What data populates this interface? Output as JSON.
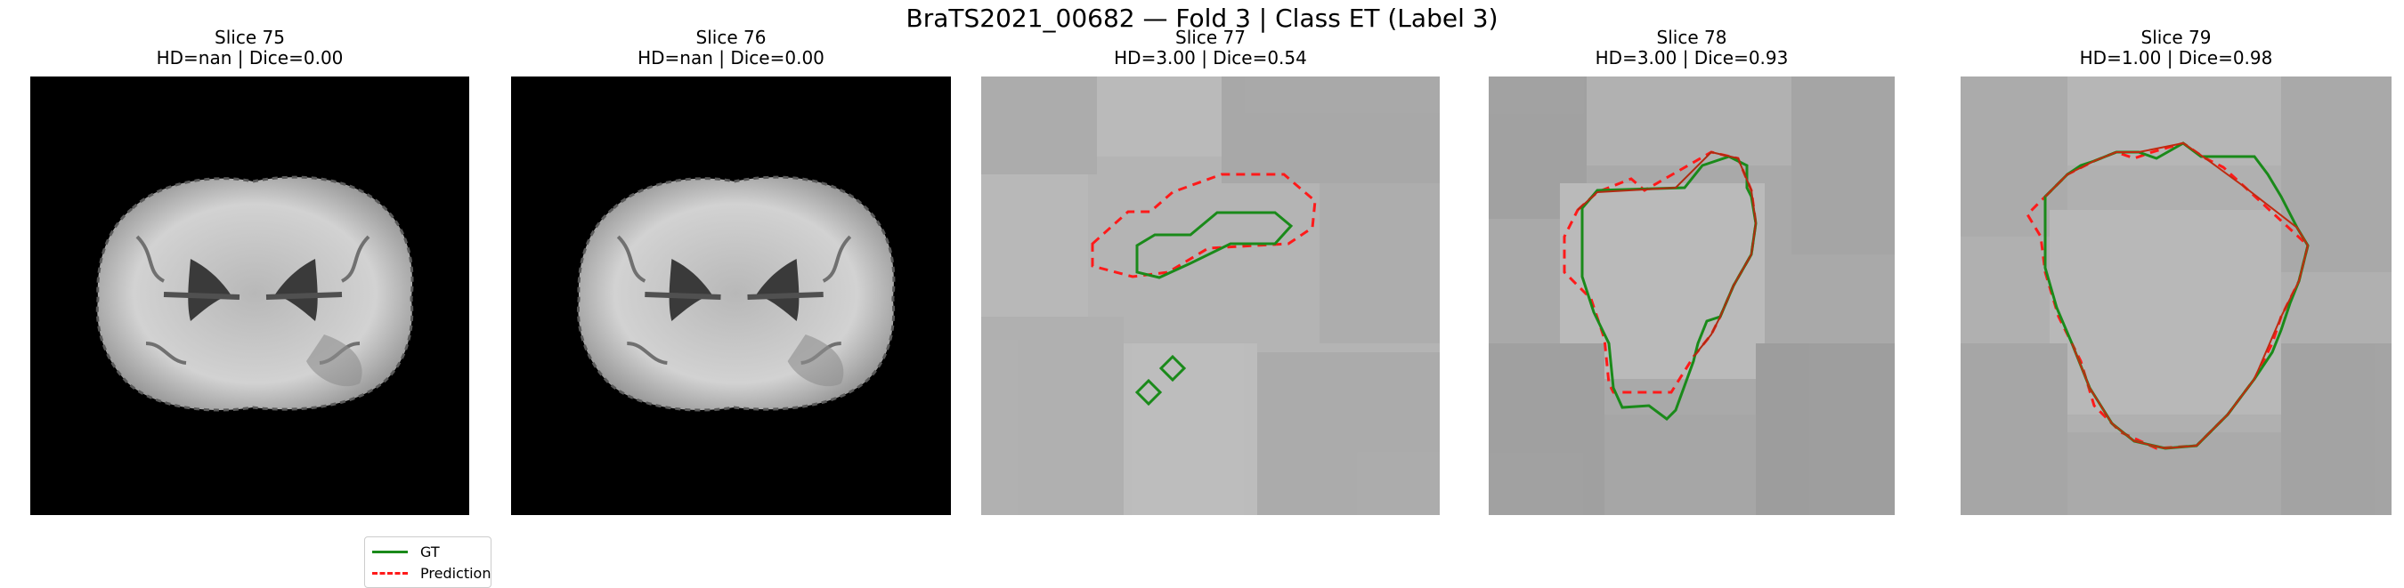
{
  "suptitle": "BraTS2021_00682 — Fold 3 | Class ET (Label 3)",
  "panels": [
    {
      "slice": "Slice 75",
      "metrics": "HD=nan | Dice=0.00"
    },
    {
      "slice": "Slice 76",
      "metrics": "HD=nan | Dice=0.00"
    },
    {
      "slice": "Slice 77",
      "metrics": "HD=3.00 | Dice=0.54"
    },
    {
      "slice": "Slice 78",
      "metrics": "HD=3.00 | Dice=0.93"
    },
    {
      "slice": "Slice 79",
      "metrics": "HD=1.00 | Dice=0.98"
    }
  ],
  "legend": {
    "gt": "GT",
    "prediction": "Prediction"
  },
  "colors": {
    "gt": "#1a8a1a",
    "prediction": "#ff1a1a",
    "background": "#000000"
  }
}
